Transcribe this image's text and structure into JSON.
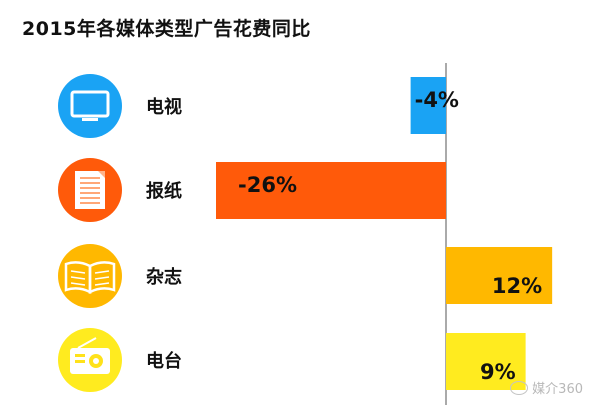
{
  "chart_data": {
    "type": "bar",
    "orientation": "horizontal",
    "title": "2015年各媒体类型广告花费同比",
    "categories": [
      "电视",
      "报纸",
      "杂志",
      "电台"
    ],
    "values": [
      -4,
      -26,
      12,
      9
    ],
    "value_labels": [
      "-4%",
      "-26%",
      "12%",
      "9%"
    ],
    "icons": [
      "tv-icon",
      "newspaper-icon",
      "book-icon",
      "radio-icon"
    ],
    "colors": [
      "#1aa3f4",
      "#ff5a0a",
      "#ffb800",
      "#ffeb1f"
    ],
    "xlim": [
      -26,
      14
    ],
    "grid": false
  },
  "watermark": {
    "text": "媒介360",
    "icon": "wechat-icon"
  }
}
